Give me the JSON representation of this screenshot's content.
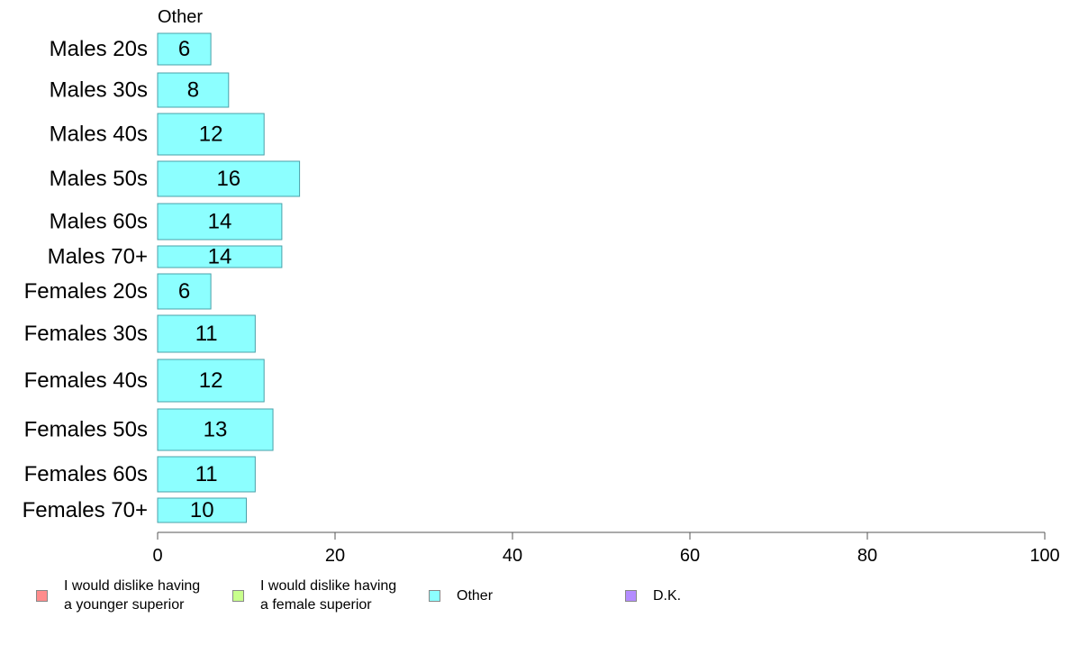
{
  "chart_data": {
    "type": "bar",
    "orientation": "horizontal",
    "panel_title": "Other",
    "categories": [
      "Males 20s",
      "Males 30s",
      "Males 40s",
      "Males 50s",
      "Males 60s",
      "Males 70+",
      "Females 20s",
      "Females 30s",
      "Females 40s",
      "Females 50s",
      "Females 60s",
      "Females 70+"
    ],
    "series": [
      {
        "name": "Other",
        "values": [
          6,
          8,
          12,
          16,
          14,
          14,
          6,
          11,
          12,
          13,
          11,
          10
        ]
      }
    ],
    "xlim": [
      0,
      100
    ],
    "x_ticks": [
      "0",
      "20",
      "40",
      "60",
      "80",
      "100"
    ],
    "grid": false,
    "legend_position": "bottom",
    "legend": [
      {
        "label": "I would dislike having\na younger superior",
        "color": "#ff8c8c"
      },
      {
        "label": "I would dislike having\na female superior",
        "color": "#c8ff8c"
      },
      {
        "label": "Other",
        "color": "#8cffff"
      },
      {
        "label": "D.K.",
        "color": "#b48cff"
      }
    ],
    "bar_color": "#8cffff",
    "bar_stroke": "#4aa0a8"
  }
}
